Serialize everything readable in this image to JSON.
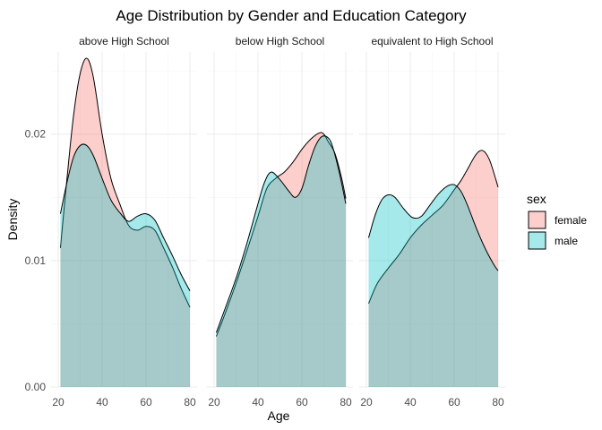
{
  "chart_data": {
    "type": "area",
    "title": "Age Distribution by Gender and Education Category",
    "xlabel": "Age",
    "ylabel": "Density",
    "xlim": [
      20,
      80
    ],
    "ylim": [
      0,
      0.0265
    ],
    "x_ticks": [
      "20",
      "40",
      "60",
      "80"
    ],
    "y_ticks": [
      "0.00",
      "0.01",
      "0.02"
    ],
    "x_tick_values": [
      20,
      40,
      60,
      80
    ],
    "y_tick_values": [
      0,
      0.01,
      0.02
    ],
    "grid": true,
    "legend": {
      "title": "sex",
      "placement": "right",
      "entries": [
        {
          "label": "female",
          "color": "#F8766D"
        },
        {
          "label": "male",
          "color": "#00BFC4"
        }
      ]
    },
    "colors": {
      "female": "#F8766D",
      "male": "#00BFC4",
      "outline": "#000000"
    },
    "fill_opacity": 0.35,
    "facets": [
      {
        "label": "above High School",
        "x_range": [
          21,
          80
        ],
        "series": [
          {
            "name": "female",
            "x": [
              21,
              24,
              27,
              30,
              33,
              36,
              40,
              44,
              48,
              52,
              56,
              60,
              64,
              68,
              72,
              76,
              80
            ],
            "y": [
              0.011,
              0.0165,
              0.0215,
              0.0248,
              0.026,
              0.0245,
              0.02,
              0.0165,
              0.0145,
              0.0128,
              0.0124,
              0.0127,
              0.0124,
              0.011,
              0.0095,
              0.0078,
              0.0063
            ]
          },
          {
            "name": "male",
            "x": [
              21,
              24,
              27,
              30,
              33,
              36,
              40,
              44,
              48,
              52,
              56,
              60,
              64,
              68,
              72,
              76,
              80
            ],
            "y": [
              0.0137,
              0.0162,
              0.0182,
              0.0191,
              0.0191,
              0.0183,
              0.0165,
              0.0148,
              0.0138,
              0.0131,
              0.0135,
              0.0137,
              0.0132,
              0.0118,
              0.0104,
              0.0089,
              0.0076
            ]
          }
        ]
      },
      {
        "label": "below High School",
        "x_range": [
          21,
          80
        ],
        "series": [
          {
            "name": "female",
            "x": [
              21,
              25,
              30,
              35,
              40,
              44,
              48,
              52,
              56,
              60,
              64,
              68,
              70,
              72,
              75,
              78,
              80
            ],
            "y": [
              0.004,
              0.0058,
              0.0082,
              0.0108,
              0.0135,
              0.0157,
              0.0165,
              0.017,
              0.0178,
              0.0188,
              0.0196,
              0.0201,
              0.02,
              0.0194,
              0.0185,
              0.0166,
              0.0149
            ]
          },
          {
            "name": "male",
            "x": [
              21,
              25,
              30,
              35,
              40,
              43,
              46,
              50,
              54,
              57,
              60,
              63,
              66,
              69,
              72,
              74,
              77,
              80
            ],
            "y": [
              0.0043,
              0.0062,
              0.0086,
              0.0114,
              0.0145,
              0.0162,
              0.017,
              0.0164,
              0.0155,
              0.015,
              0.0157,
              0.0175,
              0.019,
              0.0198,
              0.0197,
              0.019,
              0.017,
              0.0145
            ]
          }
        ]
      },
      {
        "label": "equivalent to High School",
        "x_range": [
          21,
          80
        ],
        "series": [
          {
            "name": "female",
            "x": [
              21,
              25,
              30,
              35,
              40,
              45,
              50,
              55,
              60,
              63,
              66,
              70,
              73,
              76,
              79,
              80
            ],
            "y": [
              0.0066,
              0.0082,
              0.0094,
              0.0105,
              0.0118,
              0.0128,
              0.0136,
              0.0144,
              0.0156,
              0.0163,
              0.0172,
              0.0184,
              0.0187,
              0.018,
              0.0164,
              0.0158
            ]
          },
          {
            "name": "male",
            "x": [
              21,
              24,
              27,
              30,
              33,
              37,
              41,
              45,
              49,
              53,
              57,
              60,
              63,
              66,
              70,
              74,
              78,
              80
            ],
            "y": [
              0.0118,
              0.0136,
              0.0148,
              0.0152,
              0.015,
              0.0141,
              0.0134,
              0.0135,
              0.0144,
              0.0153,
              0.0159,
              0.016,
              0.0155,
              0.0144,
              0.0126,
              0.011,
              0.0097,
              0.0092
            ]
          }
        ]
      }
    ]
  }
}
